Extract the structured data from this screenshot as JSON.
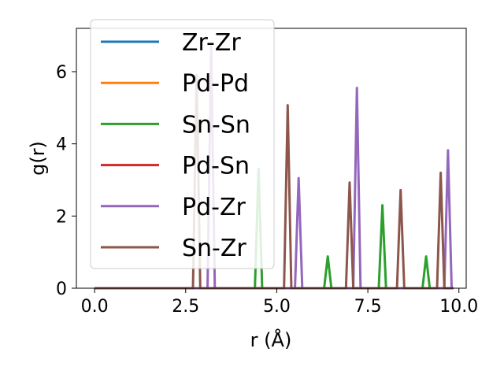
{
  "chart_data": {
    "type": "line",
    "xlabel": "r (Å)",
    "ylabel": "g(r)",
    "xlim": [
      -0.5,
      10.2
    ],
    "ylim": [
      0,
      7.2
    ],
    "xticks": [
      0.0,
      2.5,
      5.0,
      7.5,
      10.0
    ],
    "xtick_labels": [
      "0.0",
      "2.5",
      "5.0",
      "7.5",
      "10.0"
    ],
    "yticks": [
      0,
      2,
      4,
      6
    ],
    "ytick_labels": [
      "0",
      "2",
      "4",
      "6"
    ],
    "grid": false,
    "legend_position": "top-left",
    "series": [
      {
        "name": "Zr-Zr",
        "color": "#1f77b4",
        "peaks": []
      },
      {
        "name": "Pd-Pd",
        "color": "#ff7f0e",
        "peaks": []
      },
      {
        "name": "Sn-Sn",
        "color": "#2ca02c",
        "peaks": [
          [
            4.5,
            3.3
          ],
          [
            6.4,
            0.88
          ],
          [
            7.9,
            2.3
          ],
          [
            9.1,
            0.88
          ]
        ]
      },
      {
        "name": "Pd-Sn",
        "color": "#d62728",
        "peaks": []
      },
      {
        "name": "Pd-Zr",
        "color": "#9467bd",
        "peaks": [
          [
            3.2,
            6.7
          ],
          [
            5.6,
            3.05
          ],
          [
            7.2,
            5.55
          ],
          [
            9.7,
            3.82
          ]
        ]
      },
      {
        "name": "Sn-Zr",
        "color": "#8c564b",
        "peaks": [
          [
            2.8,
            5.9
          ],
          [
            5.3,
            5.07
          ],
          [
            7.0,
            2.93
          ],
          [
            8.4,
            2.72
          ],
          [
            9.5,
            3.2
          ]
        ]
      }
    ]
  }
}
